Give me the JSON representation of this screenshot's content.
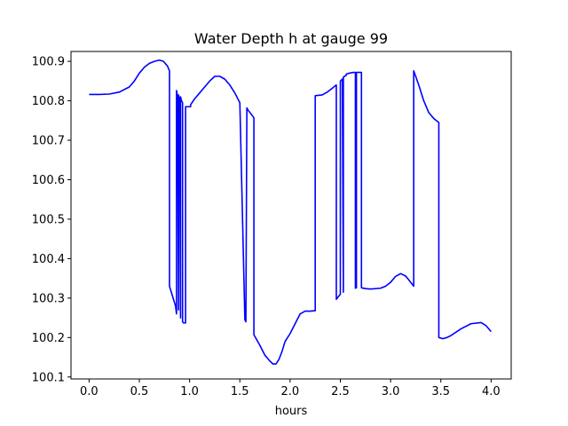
{
  "chart_data": {
    "type": "line",
    "title": "Water Depth h at gauge 99",
    "xlabel": "hours",
    "ylabel": "",
    "xlim": [
      -0.18,
      4.2
    ],
    "ylim": [
      100.095,
      100.925
    ],
    "grid": false,
    "x_ticks": [
      "0.0",
      "0.5",
      "1.0",
      "1.5",
      "2.0",
      "2.5",
      "3.0",
      "3.5",
      "4.0"
    ],
    "y_ticks": [
      "100.1",
      "100.2",
      "100.3",
      "100.4",
      "100.5",
      "100.6",
      "100.7",
      "100.8",
      "100.9"
    ],
    "series": [
      {
        "color": "#0000ff",
        "x": [
          0.0,
          0.1,
          0.2,
          0.3,
          0.4,
          0.45,
          0.5,
          0.55,
          0.6,
          0.65,
          0.7,
          0.74,
          0.78,
          0.8,
          0.8,
          0.86,
          0.87,
          0.87,
          0.88,
          0.89,
          0.89,
          0.9,
          0.91,
          0.91,
          0.92,
          0.93,
          0.93,
          0.94,
          0.96,
          0.96,
          1.01,
          1.01,
          1.05,
          1.1,
          1.15,
          1.2,
          1.25,
          1.3,
          1.35,
          1.4,
          1.45,
          1.5,
          1.55,
          1.56,
          1.57,
          1.58,
          1.64,
          1.64,
          1.7,
          1.75,
          1.8,
          1.83,
          1.86,
          1.89,
          1.92,
          1.95,
          2.0,
          2.05,
          2.1,
          2.15,
          2.2,
          2.25,
          2.25,
          2.32,
          2.37,
          2.41,
          2.46,
          2.46,
          2.5,
          2.5,
          2.52,
          2.53,
          2.53,
          2.56,
          2.56,
          2.59,
          2.63,
          2.65,
          2.65,
          2.66,
          2.66,
          2.68,
          2.71,
          2.71,
          2.75,
          2.8,
          2.9,
          2.95,
          3.0,
          3.05,
          3.1,
          3.15,
          3.2,
          3.23,
          3.23,
          3.28,
          3.33,
          3.38,
          3.43,
          3.48,
          3.48,
          3.52,
          3.56,
          3.6,
          3.7,
          3.8,
          3.9,
          3.95,
          4.0
        ],
        "y": [
          100.816,
          100.816,
          100.817,
          100.822,
          100.835,
          100.85,
          100.87,
          100.885,
          100.895,
          100.9,
          100.903,
          100.9,
          100.888,
          100.876,
          100.33,
          100.28,
          100.26,
          100.826,
          100.81,
          100.27,
          100.815,
          100.805,
          100.25,
          100.81,
          100.8,
          100.795,
          100.24,
          100.237,
          100.237,
          100.785,
          100.785,
          100.79,
          100.805,
          100.82,
          100.835,
          100.85,
          100.862,
          100.862,
          100.855,
          100.84,
          100.82,
          100.795,
          100.245,
          100.24,
          100.782,
          100.777,
          100.757,
          100.207,
          100.18,
          100.155,
          100.14,
          100.133,
          100.133,
          100.145,
          100.165,
          100.19,
          100.21,
          100.235,
          100.26,
          100.267,
          100.267,
          100.268,
          100.813,
          100.815,
          100.822,
          100.83,
          100.84,
          100.297,
          100.31,
          100.85,
          100.855,
          100.315,
          100.86,
          100.865,
          100.868,
          100.87,
          100.872,
          100.872,
          100.325,
          100.326,
          100.872,
          100.872,
          100.872,
          100.326,
          100.324,
          100.323,
          100.325,
          100.33,
          100.34,
          100.355,
          100.362,
          100.356,
          100.34,
          100.33,
          100.876,
          100.84,
          100.8,
          100.77,
          100.755,
          100.745,
          100.2,
          100.197,
          100.2,
          100.205,
          100.222,
          100.235,
          100.238,
          100.23,
          100.215
        ]
      }
    ]
  }
}
